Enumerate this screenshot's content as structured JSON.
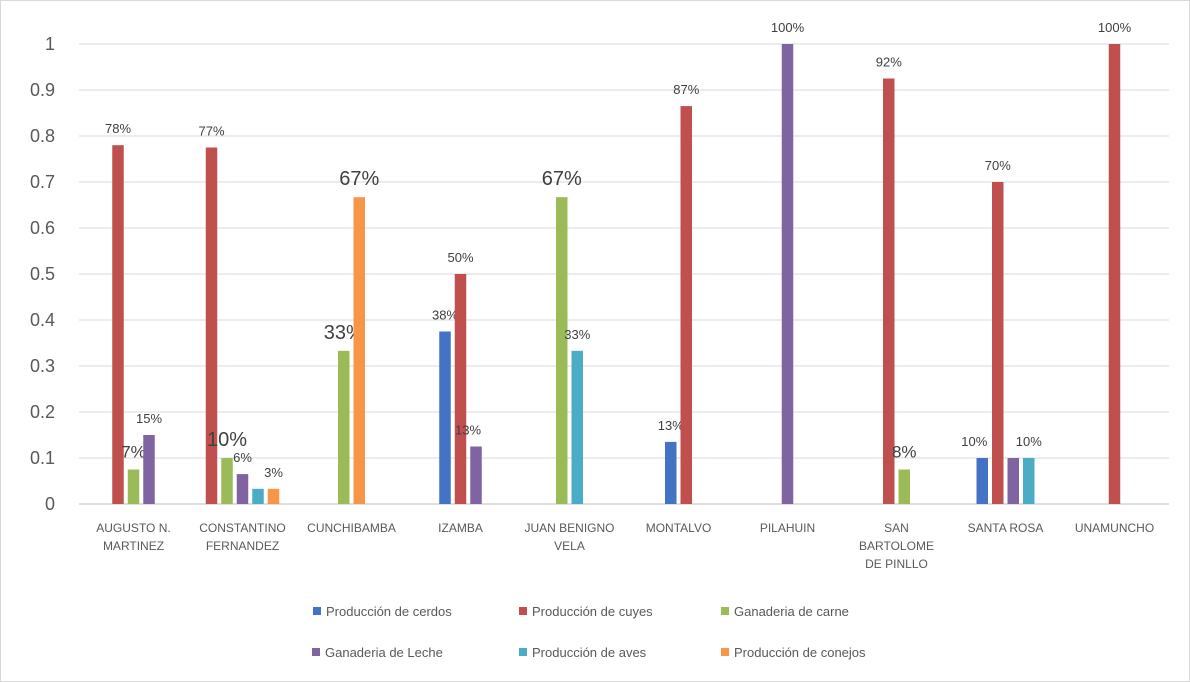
{
  "chart_data": {
    "type": "bar",
    "title": "",
    "xlabel": "",
    "ylabel": "",
    "ylim": [
      0,
      1
    ],
    "yticks": [
      "0",
      "0.1",
      "0.2",
      "0.3",
      "0.4",
      "0.5",
      "0.6",
      "0.7",
      "0.8",
      "0.9",
      "1"
    ],
    "grid": true,
    "legend_position": "bottom",
    "categories": [
      [
        "AUGUSTO N.",
        "MARTINEZ"
      ],
      [
        "CONSTANTINO",
        "FERNANDEZ"
      ],
      [
        "CUNCHIBAMBA"
      ],
      [
        "IZAMBA"
      ],
      [
        "JUAN BENIGNO",
        "VELA"
      ],
      [
        "MONTALVO"
      ],
      [
        "PILAHUIN"
      ],
      [
        "SAN",
        "BARTOLOME",
        "DE PINLLO"
      ],
      [
        "SANTA ROSA"
      ],
      [
        "UNAMUNCHO"
      ]
    ],
    "series": [
      {
        "name": "Producción de cerdos",
        "color": "#4472c4",
        "values": [
          null,
          null,
          null,
          0.375,
          null,
          0.135,
          null,
          null,
          0.1,
          null
        ],
        "labels": [
          null,
          null,
          null,
          "38%",
          null,
          "13%",
          null,
          null,
          "10%",
          null
        ]
      },
      {
        "name": "Producción de cuyes",
        "color": "#c0504d",
        "values": [
          0.78,
          0.775,
          null,
          0.5,
          null,
          0.865,
          null,
          0.925,
          0.7,
          1.0
        ],
        "labels": [
          "78%",
          "77%",
          null,
          "50%",
          null,
          "87%",
          null,
          "92%",
          "70%",
          "100%"
        ]
      },
      {
        "name": "Ganaderia de carne",
        "color": "#9bbb59",
        "values": [
          0.075,
          0.1,
          0.333,
          null,
          0.667,
          null,
          null,
          0.075,
          null,
          null
        ],
        "labels": [
          "7%",
          "10%",
          "33%",
          null,
          "67%",
          null,
          null,
          "8%",
          null,
          null
        ]
      },
      {
        "name": "Ganaderia de Leche",
        "color": "#8064a2",
        "values": [
          0.15,
          0.065,
          null,
          0.125,
          null,
          null,
          1.0,
          null,
          0.1,
          null
        ],
        "labels": [
          "15%",
          "6%",
          null,
          "13%",
          null,
          null,
          "100%",
          null,
          null,
          null
        ]
      },
      {
        "name": "Producción de aves",
        "color": "#4bacc6",
        "values": [
          null,
          0.033,
          null,
          null,
          0.333,
          null,
          null,
          null,
          0.1,
          null
        ],
        "labels": [
          null,
          null,
          null,
          null,
          "33%",
          null,
          null,
          null,
          "10%",
          null
        ]
      },
      {
        "name": "Producción de conejos",
        "color": "#f79646",
        "values": [
          null,
          0.033,
          0.667,
          null,
          null,
          null,
          null,
          null,
          null,
          null
        ],
        "labels": [
          null,
          "3%",
          "67%",
          null,
          null,
          null,
          null,
          null,
          null,
          null
        ]
      }
    ]
  }
}
